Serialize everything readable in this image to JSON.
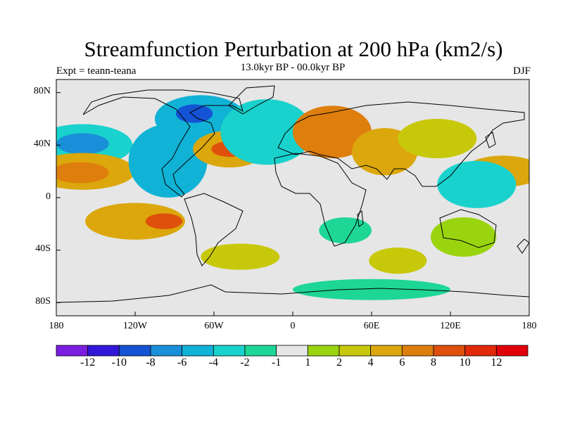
{
  "title": "Streamfunction Perturbation at 200 hPa (km2/s)",
  "expt_label": "Expt = teann-teana",
  "subtitle": "13.0kyr BP - 00.0kyr BP",
  "season": "DJF",
  "y_ticks": [
    "80N",
    "40N",
    "0",
    "40S",
    "80S"
  ],
  "x_ticks": [
    "180",
    "120W",
    "60W",
    "0",
    "60E",
    "120E",
    "180"
  ],
  "colorbar": {
    "labels": [
      "-12",
      "-10",
      "-8",
      "-6",
      "-4",
      "-2",
      "-1",
      "1",
      "2",
      "4",
      "6",
      "8",
      "10",
      "12"
    ],
    "colors": [
      "#7b1ee0",
      "#3217d8",
      "#1453d4",
      "#1a8fd9",
      "#10b2d5",
      "#1ad2cd",
      "#1ed696",
      "#e6e6e6",
      "#9ad40f",
      "#c8c80a",
      "#dba70c",
      "#de7e0c",
      "#de500c",
      "#e22a0a",
      "#e0000a"
    ]
  },
  "map": {
    "blobs": [
      {
        "lon": -160,
        "lat": 40,
        "rx": 38,
        "ry": 16,
        "c": 5,
        "level": -4
      },
      {
        "lon": -160,
        "lat": 41,
        "rx": 20,
        "ry": 8,
        "c": 3,
        "level": -8
      },
      {
        "lon": -160,
        "lat": 20,
        "rx": 40,
        "ry": 14,
        "c": 10,
        "level": 4
      },
      {
        "lon": -162,
        "lat": 19,
        "rx": 22,
        "ry": 8,
        "c": 11,
        "level": 6
      },
      {
        "lon": -120,
        "lat": -18,
        "rx": 38,
        "ry": 14,
        "c": 10,
        "level": 4
      },
      {
        "lon": -98,
        "lat": -18,
        "rx": 14,
        "ry": 6,
        "c": 12,
        "level": 8
      },
      {
        "lon": -95,
        "lat": 28,
        "rx": 30,
        "ry": 28,
        "c": 4,
        "level": -4
      },
      {
        "lon": -70,
        "lat": 60,
        "rx": 35,
        "ry": 18,
        "c": 4,
        "level": -6
      },
      {
        "lon": -75,
        "lat": 64,
        "rx": 14,
        "ry": 7,
        "c": 2,
        "level": -8
      },
      {
        "lon": -48,
        "lat": 37,
        "rx": 28,
        "ry": 14,
        "c": 10,
        "level": 4
      },
      {
        "lon": -48,
        "lat": 37,
        "rx": 14,
        "ry": 6,
        "c": 12,
        "level": 8
      },
      {
        "lon": -20,
        "lat": 50,
        "rx": 35,
        "ry": 25,
        "c": 5,
        "level": -4
      },
      {
        "lon": 30,
        "lat": 50,
        "rx": 30,
        "ry": 20,
        "c": 11,
        "level": 6
      },
      {
        "lon": 70,
        "lat": 35,
        "rx": 25,
        "ry": 18,
        "c": 10,
        "level": 4
      },
      {
        "lon": 110,
        "lat": 45,
        "rx": 30,
        "ry": 15,
        "c": 9,
        "level": 2
      },
      {
        "lon": 160,
        "lat": 20,
        "rx": 30,
        "ry": 12,
        "c": 10,
        "level": 4
      },
      {
        "lon": 140,
        "lat": 10,
        "rx": 30,
        "ry": 18,
        "c": 5,
        "level": -4
      },
      {
        "lon": 130,
        "lat": -30,
        "rx": 25,
        "ry": 15,
        "c": 8,
        "level": 1
      },
      {
        "lon": -40,
        "lat": -45,
        "rx": 30,
        "ry": 10,
        "c": 9,
        "level": 2
      },
      {
        "lon": 40,
        "lat": -25,
        "rx": 20,
        "ry": 10,
        "c": 6,
        "level": -1
      },
      {
        "lon": 80,
        "lat": -48,
        "rx": 22,
        "ry": 10,
        "c": 9,
        "level": 2
      },
      {
        "lon": 60,
        "lat": -70,
        "rx": 60,
        "ry": 8,
        "c": 6,
        "level": -1
      }
    ]
  }
}
